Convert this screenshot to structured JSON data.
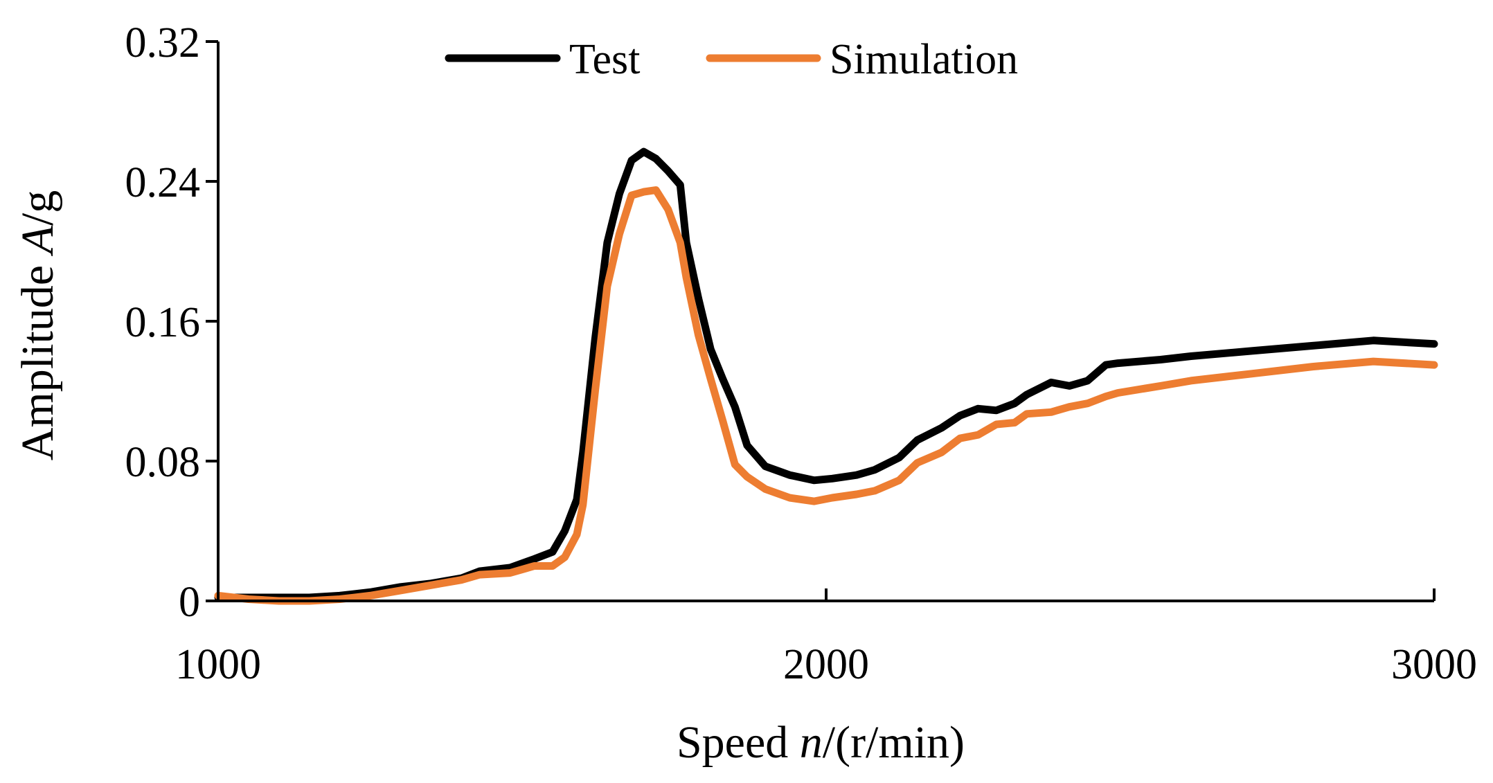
{
  "chart_data": {
    "type": "line",
    "title": "",
    "xlabel": "Speed n/(r/min)",
    "xlabel_parts": {
      "prefix": "Speed ",
      "italic": "n",
      "suffix": "/(r/min)"
    },
    "ylabel": "Amplitude A/g",
    "ylabel_parts": {
      "prefix": "Amplitude ",
      "italic": "A",
      "suffix": "/g"
    },
    "xlim": [
      1000,
      3000
    ],
    "ylim": [
      0,
      0.32
    ],
    "x_ticks": [
      1000,
      2000,
      3000
    ],
    "x_tick_labels": [
      "1000",
      "2000",
      "3000"
    ],
    "y_ticks": [
      0,
      0.08,
      0.16,
      0.24,
      0.32
    ],
    "y_tick_labels": [
      "0",
      "0.08",
      "0.16",
      "0.24",
      "0.32"
    ],
    "grid": false,
    "legend_position": "top",
    "series": [
      {
        "name": "Test",
        "color": "#000000",
        "x": [
          1000,
          1050,
          1100,
          1150,
          1200,
          1250,
          1300,
          1350,
          1400,
          1430,
          1480,
          1520,
          1550,
          1570,
          1590,
          1600,
          1620,
          1640,
          1660,
          1680,
          1700,
          1720,
          1740,
          1760,
          1770,
          1790,
          1810,
          1830,
          1850,
          1870,
          1900,
          1940,
          1980,
          2010,
          2050,
          2080,
          2120,
          2150,
          2190,
          2220,
          2250,
          2280,
          2310,
          2330,
          2370,
          2400,
          2430,
          2460,
          2480,
          2550,
          2600,
          2700,
          2800,
          2900,
          3000
        ],
        "values": [
          0.002,
          0.002,
          0.002,
          0.002,
          0.003,
          0.005,
          0.008,
          0.01,
          0.013,
          0.017,
          0.019,
          0.024,
          0.028,
          0.04,
          0.058,
          0.085,
          0.15,
          0.205,
          0.233,
          0.252,
          0.257,
          0.253,
          0.246,
          0.238,
          0.205,
          0.173,
          0.144,
          0.127,
          0.111,
          0.089,
          0.077,
          0.072,
          0.069,
          0.07,
          0.072,
          0.075,
          0.082,
          0.092,
          0.099,
          0.106,
          0.11,
          0.109,
          0.113,
          0.118,
          0.125,
          0.123,
          0.126,
          0.135,
          0.136,
          0.138,
          0.14,
          0.143,
          0.146,
          0.149,
          0.147
        ]
      },
      {
        "name": "Simulation",
        "color": "#ed7d31",
        "x": [
          1000,
          1050,
          1100,
          1150,
          1200,
          1250,
          1300,
          1350,
          1400,
          1430,
          1480,
          1520,
          1550,
          1570,
          1590,
          1600,
          1620,
          1640,
          1660,
          1680,
          1700,
          1720,
          1740,
          1760,
          1770,
          1790,
          1810,
          1830,
          1850,
          1870,
          1900,
          1940,
          1980,
          2010,
          2050,
          2080,
          2120,
          2150,
          2190,
          2220,
          2250,
          2280,
          2310,
          2330,
          2370,
          2400,
          2430,
          2460,
          2480,
          2550,
          2600,
          2700,
          2800,
          2900,
          3000
        ],
        "values": [
          0.003,
          0.001,
          0.0,
          0.0,
          0.001,
          0.003,
          0.006,
          0.009,
          0.012,
          0.015,
          0.016,
          0.02,
          0.02,
          0.025,
          0.038,
          0.055,
          0.12,
          0.18,
          0.21,
          0.232,
          0.234,
          0.235,
          0.224,
          0.205,
          0.185,
          0.152,
          0.127,
          0.103,
          0.078,
          0.071,
          0.064,
          0.059,
          0.057,
          0.059,
          0.061,
          0.063,
          0.069,
          0.079,
          0.085,
          0.093,
          0.095,
          0.101,
          0.102,
          0.107,
          0.108,
          0.111,
          0.113,
          0.117,
          0.119,
          0.123,
          0.126,
          0.13,
          0.134,
          0.137,
          0.135
        ]
      }
    ]
  }
}
